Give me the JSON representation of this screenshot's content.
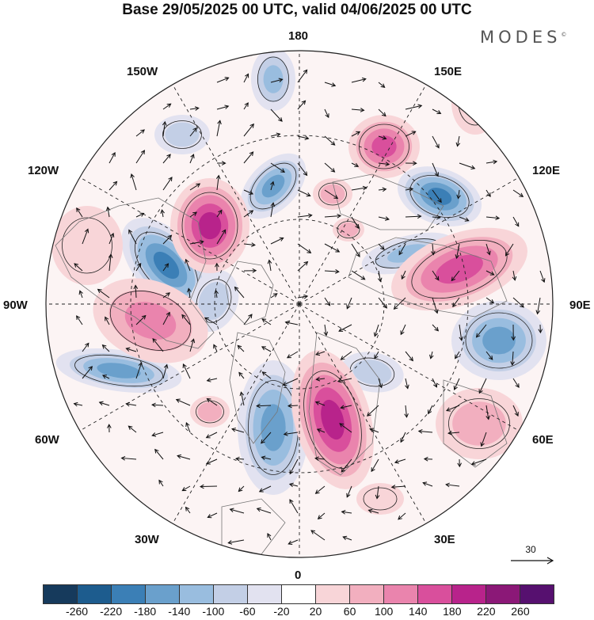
{
  "title": "Base 29/05/2025 00 UTC, valid 04/06/2025 00 UTC",
  "brand": "MODES",
  "brand_mark": "©",
  "longitude_labels": [
    "180",
    "150E",
    "120E",
    "90E",
    "60E",
    "30E",
    "0",
    "30W",
    "60W",
    "90W",
    "120W",
    "150W"
  ],
  "vector_reference": {
    "value": "30"
  },
  "colorbar": {
    "ticks": [
      "-260",
      "-220",
      "-180",
      "-140",
      "-100",
      "-60",
      "-20",
      "20",
      "60",
      "100",
      "140",
      "180",
      "220",
      "260"
    ],
    "colors": [
      "#163a5c",
      "#1d5c8e",
      "#3b7fb6",
      "#6aa0cc",
      "#99bddf",
      "#c3cfe6",
      "#e2e2f0",
      "#ffffff",
      "#f8d5d8",
      "#f2afbf",
      "#ea84ad",
      "#d94f9c",
      "#b8238b",
      "#8b1877",
      "#56106f"
    ]
  }
}
